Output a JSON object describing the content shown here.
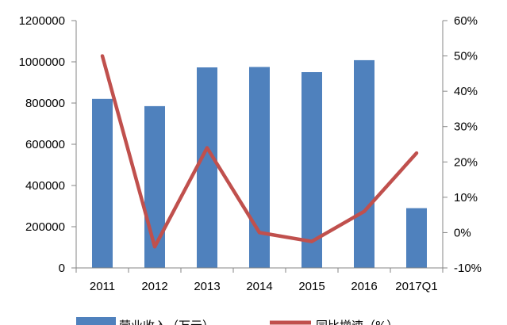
{
  "chart_data": {
    "type": "bar",
    "categories": [
      "2011",
      "2012",
      "2013",
      "2014",
      "2015",
      "2016",
      "2017Q1"
    ],
    "series": [
      {
        "name": "营业收入（万元）",
        "type": "bar",
        "axis": "left",
        "color": "#4f81bd",
        "values": [
          820000,
          785000,
          973000,
          975000,
          950000,
          1008000,
          290000
        ]
      },
      {
        "name": "同比增速（%）",
        "type": "line",
        "axis": "right",
        "color": "#c0504d",
        "values": [
          50,
          -4,
          24,
          0,
          -2.5,
          6,
          22.5
        ]
      }
    ],
    "y_left": {
      "min": 0,
      "max": 1200000,
      "ticks": [
        0,
        200000,
        400000,
        600000,
        800000,
        1000000,
        1200000
      ],
      "tick_labels": [
        "0",
        "200000",
        "400000",
        "600000",
        "800000",
        "1000000",
        "1200000"
      ]
    },
    "y_right": {
      "min": -10,
      "max": 60,
      "ticks": [
        -10,
        0,
        10,
        20,
        30,
        40,
        50,
        60
      ],
      "tick_labels": [
        "-10%",
        "0%",
        "10%",
        "20%",
        "30%",
        "40%",
        "50%",
        "60%"
      ]
    },
    "title": "",
    "xlabel": "",
    "ylabel": "",
    "grid": false,
    "legend_position": "bottom"
  }
}
